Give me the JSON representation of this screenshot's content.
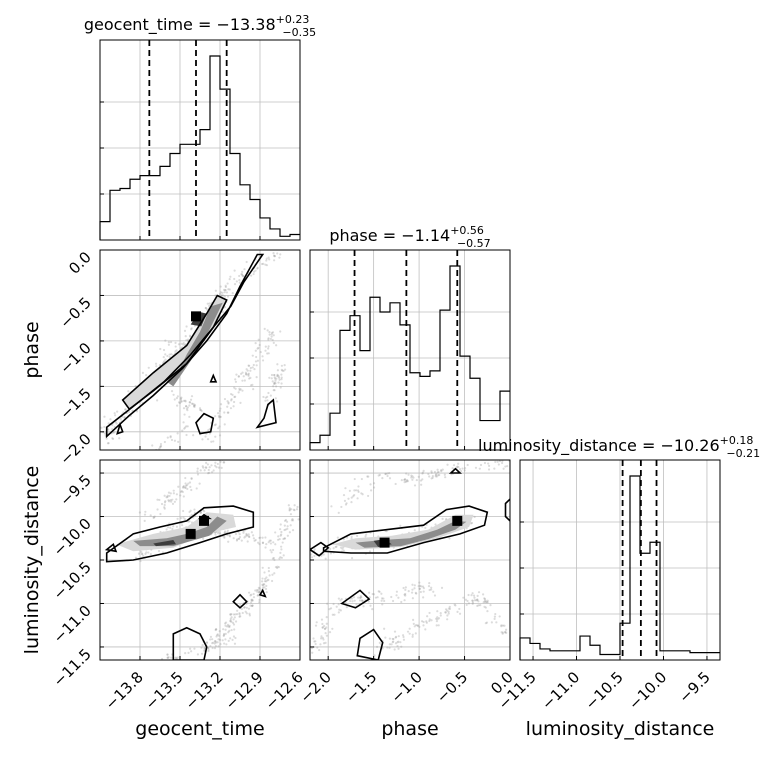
{
  "chart_data": {
    "type": "corner",
    "parameters": [
      {
        "name": "geocent_time",
        "title_prefix": "geocent_time = ",
        "median_text": "−13.38",
        "plus": "+0.23",
        "minus": "−0.35",
        "range": [
          -14.1,
          -12.6
        ],
        "ticks": [
          -13.8,
          -13.5,
          -13.2,
          -12.9,
          -12.6
        ],
        "tick_labels": [
          "−13.8",
          "−13.5",
          "−13.2",
          "−12.9",
          "−12.6"
        ],
        "quantiles": [
          -13.73,
          -13.38,
          -13.15
        ],
        "hist_edges": [
          -14.1,
          -14.025,
          -13.95,
          -13.875,
          -13.8,
          -13.725,
          -13.65,
          -13.575,
          -13.5,
          -13.425,
          -13.35,
          -13.275,
          -13.2,
          -13.125,
          -13.05,
          -12.975,
          -12.9,
          -12.825,
          -12.75,
          -12.675,
          -12.6
        ],
        "hist_counts": [
          0.1,
          0.27,
          0.28,
          0.33,
          0.35,
          0.35,
          0.4,
          0.47,
          0.52,
          0.52,
          0.6,
          1.0,
          0.82,
          0.47,
          0.3,
          0.22,
          0.12,
          0.06,
          0.02,
          0.03
        ]
      },
      {
        "name": "phase",
        "title_prefix": "phase = ",
        "median_text": "−1.14",
        "plus": "+0.56",
        "minus": "−0.57",
        "range": [
          -2.2,
          0.0
        ],
        "ticks": [
          -2.0,
          -1.5,
          -1.0,
          -0.5,
          0.0
        ],
        "tick_labels": [
          "−2.0",
          "−1.5",
          "−1.0",
          "−0.5",
          "0.0"
        ],
        "quantiles": [
          -1.71,
          -1.14,
          -0.58
        ],
        "hist_edges": [
          -2.2,
          -2.09,
          -1.98,
          -1.87,
          -1.76,
          -1.65,
          -1.54,
          -1.43,
          -1.32,
          -1.21,
          -1.1,
          -0.99,
          -0.88,
          -0.77,
          -0.66,
          -0.55,
          -0.44,
          -0.33,
          -0.22,
          -0.11,
          0.0
        ],
        "hist_counts": [
          0.04,
          0.08,
          0.2,
          0.65,
          0.73,
          0.54,
          0.83,
          0.75,
          0.8,
          0.68,
          0.42,
          0.4,
          0.43,
          0.76,
          1.0,
          0.51,
          0.39,
          0.16,
          0.16,
          0.32
        ]
      },
      {
        "name": "luminosity_distance",
        "title_prefix": "luminosity_distance = ",
        "median_text": "−10.26",
        "plus": "+0.18",
        "minus": "−0.21",
        "range": [
          -11.65,
          -9.35
        ],
        "ticks": [
          -11.5,
          -11.0,
          -10.5,
          -10.0,
          -9.5
        ],
        "tick_labels": [
          "−11.5",
          "−11.0",
          "−10.5",
          "−10.0",
          "−9.5"
        ],
        "quantiles": [
          -10.47,
          -10.26,
          -10.08
        ],
        "hist_edges": [
          -11.65,
          -11.535,
          -11.42,
          -11.305,
          -11.19,
          -11.075,
          -10.96,
          -10.845,
          -10.73,
          -10.615,
          -10.5,
          -10.385,
          -10.27,
          -10.155,
          -10.04,
          -9.925,
          -9.81,
          -9.695,
          -9.58,
          -9.465,
          -9.35
        ],
        "hist_counts": [
          0.12,
          0.09,
          0.06,
          0.05,
          0.05,
          0.05,
          0.13,
          0.08,
          0.03,
          0.03,
          0.2,
          1.0,
          0.58,
          0.64,
          0.05,
          0.05,
          0.05,
          0.04,
          0.04,
          0.04
        ]
      }
    ],
    "grid": true,
    "density_contours": "filled 2D histograms with contour lines and scatter points"
  }
}
